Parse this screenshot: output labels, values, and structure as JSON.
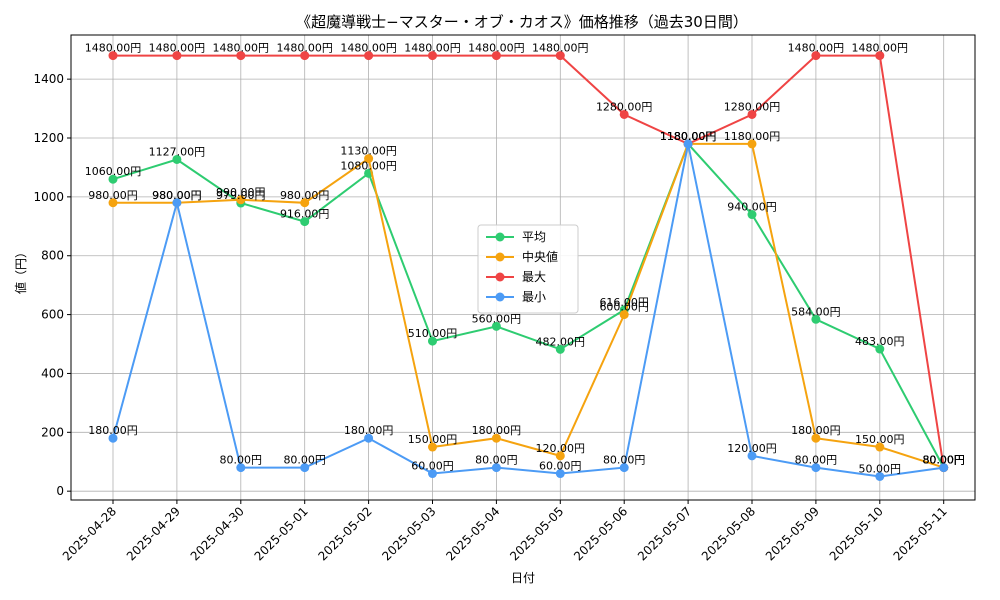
{
  "chart_data": {
    "type": "line",
    "title": "《超魔導戦士−マスター・オブ・カオス》価格推移（過去30日間）",
    "xlabel": "日付",
    "ylabel": "値（円）",
    "x": [
      "2025-04-28",
      "2025-04-29",
      "2025-04-30",
      "2025-05-01",
      "2025-05-02",
      "2025-05-03",
      "2025-05-04",
      "2025-05-05",
      "2025-05-06",
      "2025-05-07",
      "2025-05-08",
      "2025-05-09",
      "2025-05-10",
      "2025-05-11"
    ],
    "yticks": [
      0,
      200,
      400,
      600,
      800,
      1000,
      1200,
      1400
    ],
    "ylim": [
      -30,
      1550
    ],
    "grid": true,
    "legend_position": "center",
    "value_suffix": "円",
    "series": [
      {
        "name": "平均",
        "color": "#2ecc71",
        "values": [
          1060,
          1127,
          979,
          916,
          1080,
          510,
          560,
          482,
          616,
          1180,
          940,
          584,
          483,
          80
        ]
      },
      {
        "name": "中央値",
        "color": "#f5a30f",
        "values": [
          980,
          980,
          990,
          980,
          1130,
          150,
          180,
          120,
          600,
          1180,
          1180,
          180,
          150,
          80
        ]
      },
      {
        "name": "最大",
        "color": "#ef4444",
        "values": [
          1480,
          1480,
          1480,
          1480,
          1480,
          1480,
          1480,
          1480,
          1280,
          1180,
          1280,
          1480,
          1480,
          80
        ]
      },
      {
        "name": "最小",
        "color": "#4c9bf5",
        "values": [
          180,
          980,
          80,
          80,
          180,
          60,
          80,
          60,
          80,
          1180,
          120,
          80,
          50,
          80
        ]
      }
    ]
  }
}
